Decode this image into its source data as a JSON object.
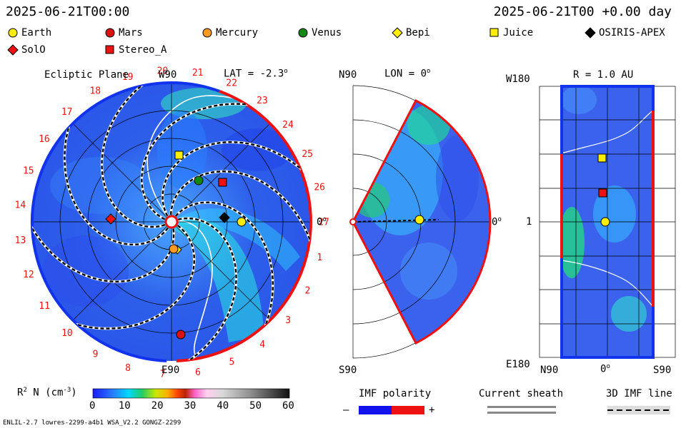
{
  "header": {
    "left_time": "2025-06-21T00:00",
    "right_time": "2025-06-21T00 +0.00 day"
  },
  "legend": [
    {
      "name": "Earth",
      "marker": "circle",
      "color": "#ffee00"
    },
    {
      "name": "Mars",
      "marker": "circle",
      "color": "#dd1111"
    },
    {
      "name": "Mercury",
      "marker": "circle",
      "color": "#ff9922"
    },
    {
      "name": "Venus",
      "marker": "circle",
      "color": "#118811"
    },
    {
      "name": "Bepi",
      "marker": "diamond",
      "color": "#ffee00"
    },
    {
      "name": "Juice",
      "marker": "square",
      "color": "#ffee00"
    },
    {
      "name": "OSIRIS-APEX",
      "marker": "diamond",
      "color": "#000000"
    },
    {
      "name": "SolO",
      "marker": "diamond",
      "color": "#ee1111"
    },
    {
      "name": "Stereo_A",
      "marker": "square",
      "color": "#ee1111"
    }
  ],
  "panels": {
    "ecliptic": {
      "title": "Ecliptic Plane",
      "lat": "LAT = -2.3",
      "top_label": "W90",
      "bottom_label": "E90",
      "right_label": "0",
      "carrington": [
        "1",
        "2",
        "3",
        "4",
        "5",
        "6",
        "7",
        "8",
        "9",
        "10",
        "11",
        "12",
        "13",
        "14",
        "15",
        "16",
        "17",
        "18",
        "19",
        "20",
        "21",
        "22",
        "23",
        "24",
        "25",
        "26",
        "27"
      ]
    },
    "meridional": {
      "lon": "LON = 0",
      "top_label": "N90",
      "bottom_label": "S90",
      "right_label": "0"
    },
    "shell": {
      "r": "R = 1.0 AU",
      "top_left": "W180",
      "bottom_left": "E180",
      "mid_left": "1",
      "x_labels": [
        "N90",
        "0",
        "S90"
      ]
    }
  },
  "colorbar": {
    "label": "R",
    "label_sup": "2",
    "label_rest": " N (cm",
    "label_unit_sup": "-3",
    "label_end": ")",
    "ticks": [
      "0",
      "10",
      "20",
      "30",
      "40",
      "50",
      "60"
    ]
  },
  "imf": {
    "polarity_title": "IMF polarity",
    "minus": "–",
    "plus": "+",
    "sheath_title": "Current sheath",
    "line_title": "3D IMF line"
  },
  "footer": {
    "left": "ENLIL-2.7 lowres-2299-a4b1 WSA_V2.2 GONGZ-2299"
  },
  "colors": {
    "blue_pole": "#1133ee",
    "red_pole": "#ee1111",
    "background_field": "#3355ee"
  }
}
